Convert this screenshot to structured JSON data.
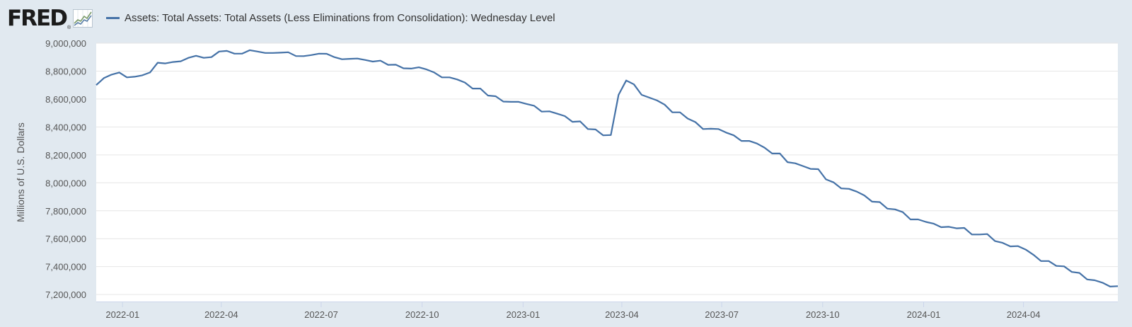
{
  "header": {
    "logo_text": "FRED",
    "logo_mark": "®",
    "logo_icon": "fred-chart-line-icon"
  },
  "colors": {
    "background": "#e1e9f0",
    "plot_background": "#ffffff",
    "series": "#4572a7",
    "grid": "#e6e6e6"
  },
  "chart_data": {
    "type": "line",
    "title": "",
    "xlabel": "",
    "ylabel": "Millions of U.S. Dollars",
    "grid": true,
    "legend_position": "top-left",
    "ylim": [
      7150000,
      9000000
    ],
    "xlim": [
      "2021-12-08",
      "2024-06-26"
    ],
    "y_ticks": [
      7200000,
      7400000,
      7600000,
      7800000,
      8000000,
      8200000,
      8400000,
      8600000,
      8800000,
      9000000
    ],
    "y_tick_labels": [
      "7,200,000",
      "7,400,000",
      "7,600,000",
      "7,800,000",
      "8,000,000",
      "8,200,000",
      "8,400,000",
      "8,600,000",
      "8,800,000",
      "9,000,000"
    ],
    "x_ticks": [
      "2022-01-01",
      "2022-04-01",
      "2022-07-01",
      "2022-10-01",
      "2023-01-01",
      "2023-04-01",
      "2023-07-01",
      "2023-10-01",
      "2024-01-01",
      "2024-04-01"
    ],
    "x_tick_labels": [
      "2022-01",
      "2022-04",
      "2022-07",
      "2022-10",
      "2023-01",
      "2023-04",
      "2023-07",
      "2023-10",
      "2024-01",
      "2024-04"
    ],
    "series": [
      {
        "name": "Assets: Total Assets: Total Assets (Less Eliminations from Consolidation): Wednesday Level",
        "points": [
          [
            "2021-12-08",
            8700000
          ],
          [
            "2021-12-15",
            8750000
          ],
          [
            "2021-12-22",
            8775000
          ],
          [
            "2021-12-29",
            8790000
          ],
          [
            "2022-01-05",
            8755000
          ],
          [
            "2022-01-12",
            8760000
          ],
          [
            "2022-01-19",
            8770000
          ],
          [
            "2022-01-26",
            8790000
          ],
          [
            "2022-02-02",
            8860000
          ],
          [
            "2022-02-09",
            8855000
          ],
          [
            "2022-02-16",
            8865000
          ],
          [
            "2022-02-23",
            8870000
          ],
          [
            "2022-03-02",
            8895000
          ],
          [
            "2022-03-09",
            8910000
          ],
          [
            "2022-03-16",
            8895000
          ],
          [
            "2022-03-23",
            8900000
          ],
          [
            "2022-03-30",
            8940000
          ],
          [
            "2022-04-06",
            8945000
          ],
          [
            "2022-04-13",
            8925000
          ],
          [
            "2022-04-20",
            8925000
          ],
          [
            "2022-04-27",
            8950000
          ],
          [
            "2022-05-04",
            8940000
          ],
          [
            "2022-05-11",
            8930000
          ],
          [
            "2022-05-18",
            8930000
          ],
          [
            "2022-05-25",
            8932000
          ],
          [
            "2022-06-01",
            8935000
          ],
          [
            "2022-06-08",
            8908000
          ],
          [
            "2022-06-15",
            8907000
          ],
          [
            "2022-06-22",
            8915000
          ],
          [
            "2022-06-29",
            8925000
          ],
          [
            "2022-07-06",
            8924000
          ],
          [
            "2022-07-13",
            8900000
          ],
          [
            "2022-07-20",
            8885000
          ],
          [
            "2022-07-27",
            8888000
          ],
          [
            "2022-08-03",
            8890000
          ],
          [
            "2022-08-10",
            8880000
          ],
          [
            "2022-08-17",
            8868000
          ],
          [
            "2022-08-24",
            8875000
          ],
          [
            "2022-08-31",
            8845000
          ],
          [
            "2022-09-07",
            8846000
          ],
          [
            "2022-09-14",
            8820000
          ],
          [
            "2022-09-21",
            8818000
          ],
          [
            "2022-09-28",
            8827000
          ],
          [
            "2022-10-05",
            8812000
          ],
          [
            "2022-10-12",
            8790000
          ],
          [
            "2022-10-19",
            8755000
          ],
          [
            "2022-10-26",
            8755000
          ],
          [
            "2022-11-02",
            8740000
          ],
          [
            "2022-11-09",
            8718000
          ],
          [
            "2022-11-16",
            8675000
          ],
          [
            "2022-11-23",
            8675000
          ],
          [
            "2022-11-30",
            8625000
          ],
          [
            "2022-12-07",
            8620000
          ],
          [
            "2022-12-14",
            8582000
          ],
          [
            "2022-12-21",
            8580000
          ],
          [
            "2022-12-28",
            8580000
          ],
          [
            "2023-01-04",
            8565000
          ],
          [
            "2023-01-11",
            8552000
          ],
          [
            "2023-01-18",
            8510000
          ],
          [
            "2023-01-25",
            8512000
          ],
          [
            "2023-02-01",
            8495000
          ],
          [
            "2023-02-08",
            8478000
          ],
          [
            "2023-02-15",
            8437000
          ],
          [
            "2023-02-22",
            8440000
          ],
          [
            "2023-03-01",
            8385000
          ],
          [
            "2023-03-08",
            8382000
          ],
          [
            "2023-03-15",
            8340000
          ],
          [
            "2023-03-22",
            8342000
          ],
          [
            "2023-03-29",
            8630000
          ],
          [
            "2023-04-05",
            8733000
          ],
          [
            "2023-04-12",
            8705000
          ],
          [
            "2023-04-19",
            8630000
          ],
          [
            "2023-04-26",
            8610000
          ],
          [
            "2023-05-03",
            8590000
          ],
          [
            "2023-05-10",
            8560000
          ],
          [
            "2023-05-17",
            8505000
          ],
          [
            "2023-05-24",
            8505000
          ],
          [
            "2023-05-31",
            8460000
          ],
          [
            "2023-06-07",
            8435000
          ],
          [
            "2023-06-14",
            8385000
          ],
          [
            "2023-06-21",
            8387000
          ],
          [
            "2023-06-28",
            8385000
          ],
          [
            "2023-07-05",
            8360000
          ],
          [
            "2023-07-12",
            8340000
          ],
          [
            "2023-07-19",
            8300000
          ],
          [
            "2023-07-26",
            8300000
          ],
          [
            "2023-08-02",
            8282000
          ],
          [
            "2023-08-09",
            8252000
          ],
          [
            "2023-08-16",
            8210000
          ],
          [
            "2023-08-23",
            8210000
          ],
          [
            "2023-08-30",
            8148000
          ],
          [
            "2023-09-06",
            8140000
          ],
          [
            "2023-09-13",
            8120000
          ],
          [
            "2023-09-20",
            8100000
          ],
          [
            "2023-09-27",
            8098000
          ],
          [
            "2023-10-04",
            8025000
          ],
          [
            "2023-10-11",
            8003000
          ],
          [
            "2023-10-18",
            7960000
          ],
          [
            "2023-10-25",
            7957000
          ],
          [
            "2023-11-01",
            7937000
          ],
          [
            "2023-11-08",
            7910000
          ],
          [
            "2023-11-15",
            7865000
          ],
          [
            "2023-11-22",
            7862000
          ],
          [
            "2023-11-29",
            7815000
          ],
          [
            "2023-12-06",
            7810000
          ],
          [
            "2023-12-13",
            7790000
          ],
          [
            "2023-12-20",
            7738000
          ],
          [
            "2023-12-27",
            7738000
          ],
          [
            "2024-01-03",
            7720000
          ],
          [
            "2024-01-10",
            7708000
          ],
          [
            "2024-01-17",
            7682000
          ],
          [
            "2024-01-24",
            7685000
          ],
          [
            "2024-01-31",
            7674000
          ],
          [
            "2024-02-07",
            7677000
          ],
          [
            "2024-02-14",
            7630000
          ],
          [
            "2024-02-21",
            7630000
          ],
          [
            "2024-02-28",
            7633000
          ],
          [
            "2024-03-06",
            7583000
          ],
          [
            "2024-03-13",
            7570000
          ],
          [
            "2024-03-20",
            7545000
          ],
          [
            "2024-03-27",
            7547000
          ],
          [
            "2024-04-03",
            7522000
          ],
          [
            "2024-04-10",
            7485000
          ],
          [
            "2024-04-17",
            7440000
          ],
          [
            "2024-04-24",
            7440000
          ],
          [
            "2024-05-01",
            7405000
          ],
          [
            "2024-05-08",
            7402000
          ],
          [
            "2024-05-15",
            7362000
          ],
          [
            "2024-05-22",
            7355000
          ],
          [
            "2024-05-29",
            7308000
          ],
          [
            "2024-06-05",
            7302000
          ],
          [
            "2024-06-12",
            7285000
          ],
          [
            "2024-06-19",
            7257000
          ],
          [
            "2024-06-26",
            7260000
          ]
        ]
      }
    ]
  }
}
